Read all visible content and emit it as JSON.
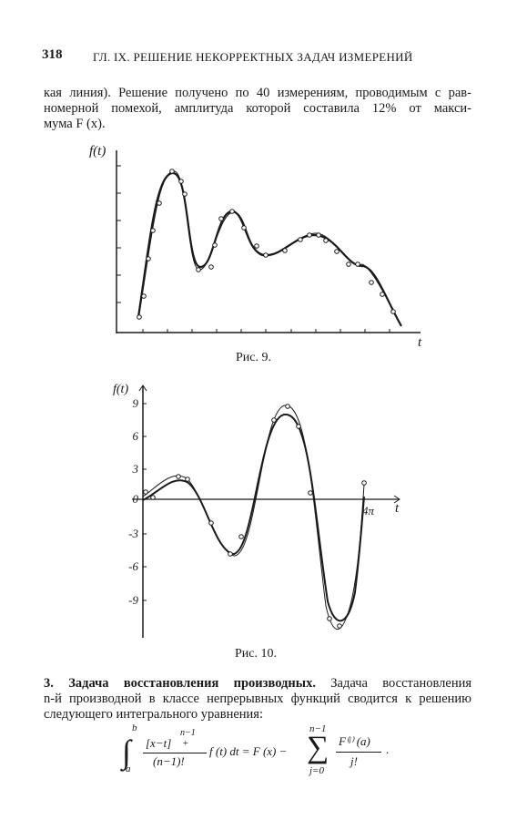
{
  "header": {
    "page_number": "318",
    "running_title": "ГЛ. IX. РЕШЕНИЕ НЕКОРРЕКТНЫХ ЗАДАЧ ИЗМЕРЕНИЙ"
  },
  "paragraph": {
    "lines": [
      "кая линия). Решение получено по 40 измерениям, проводимым с рав-",
      "номерной помехой, амплитуда которой составила 12% от макси-",
      "мума F (x)."
    ]
  },
  "figure_9": {
    "y_label": "f(t)",
    "x_label": "t",
    "caption": "Рис. 9."
  },
  "figure_10": {
    "y_label": "f(t)",
    "x_label": "t",
    "y_tick_labels": [
      "9",
      "6",
      "3",
      "0",
      "-3",
      "-6",
      "-9"
    ],
    "x_tick_label": "4π",
    "caption": "Рис. 10."
  },
  "section": {
    "heading": "3. Задача восстановления производных.",
    "lines": [
      "Задача восстановления",
      "n-й производной в классе непрерывных функций сводится к решению",
      "следующего интегрального уравнения:"
    ]
  },
  "formula": {
    "upper_limit": "b",
    "lower_limit": "a",
    "numerator": "[x−t]",
    "num_sup": "n−1",
    "num_sub": "+",
    "denominator": "(n−1)!",
    "middle": "f (t) dt = F (x) −",
    "sum_upper": "n−1",
    "sum_lower": "j=0",
    "frac2_num": "F⁽ʲ⁾ (a)",
    "frac2_den": "j!",
    "end": "."
  }
}
